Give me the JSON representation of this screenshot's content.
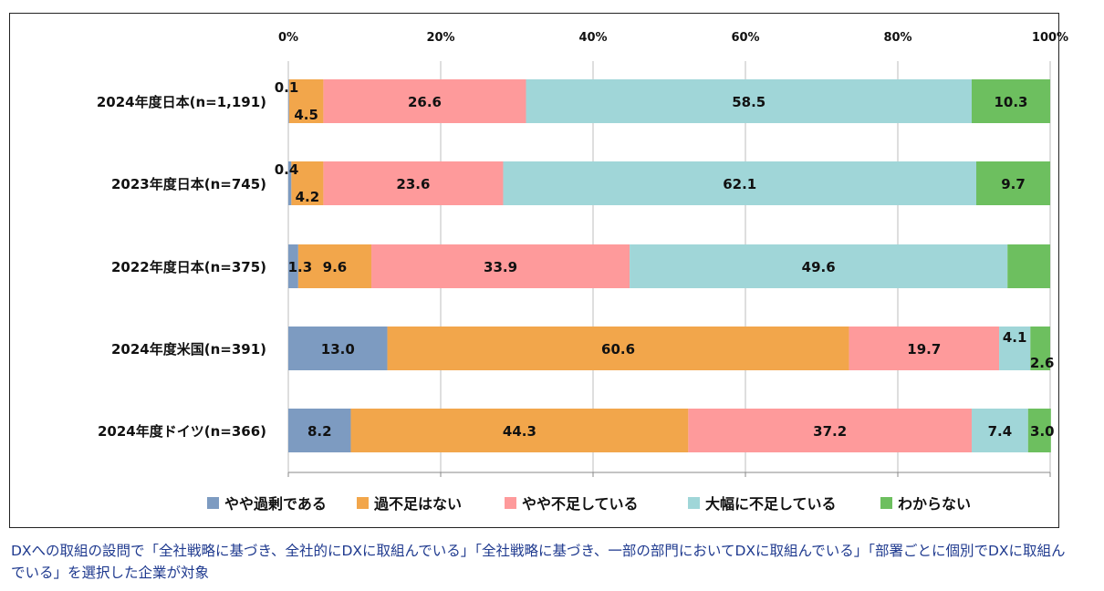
{
  "chart_data": {
    "type": "bar",
    "orientation": "horizontal",
    "stacked": true,
    "xlim": [
      0,
      100
    ],
    "x_ticks": [
      "0%",
      "20%",
      "40%",
      "60%",
      "80%",
      "100%"
    ],
    "grid": true,
    "legend_position": "bottom",
    "categories": [
      "2024年度日本(n=1,191)",
      "2023年度日本(n=745)",
      "2022年度日本(n=375)",
      "2024年度米国(n=391)",
      "2024年度ドイツ(n=366)"
    ],
    "series": [
      {
        "name": "やや過剰である",
        "color": "#7d9bc1",
        "values": [
          0.1,
          0.4,
          1.3,
          13.0,
          8.2
        ],
        "labels": [
          "0.1",
          "0.4",
          "1.3",
          "13.0",
          "8.2"
        ]
      },
      {
        "name": "過不足はない",
        "color": "#f2a64b",
        "values": [
          4.5,
          4.2,
          9.6,
          60.6,
          44.3
        ],
        "labels": [
          "4.5",
          "4.2",
          "9.6",
          "60.6",
          "44.3"
        ]
      },
      {
        "name": "やや不足している",
        "color": "#fe9a9b",
        "values": [
          26.6,
          23.6,
          33.9,
          19.7,
          37.2
        ],
        "labels": [
          "26.6",
          "23.6",
          "33.9",
          "19.7",
          "37.2"
        ]
      },
      {
        "name": "大幅に不足している",
        "color": "#a0d6d8",
        "values": [
          58.5,
          62.1,
          49.6,
          4.1,
          7.4
        ],
        "labels": [
          "58.5",
          "62.1",
          "49.6",
          "4.1",
          "7.4"
        ]
      },
      {
        "name": "わからない",
        "color": "#6dbf5f",
        "values": [
          10.3,
          9.7,
          5.6,
          2.6,
          3.0
        ],
        "labels": [
          "10.3",
          "9.7",
          "5.6",
          "2.6",
          "3.0"
        ]
      }
    ]
  },
  "footnote": "DXへの取組の設問で「全社戦略に基づき、全社的にDXに取組んでいる」「全社戦略に基づき、一部の部門においてDXに取組んでいる」「部署ごとに個別でDXに取組んでいる」を選択した企業が対象"
}
